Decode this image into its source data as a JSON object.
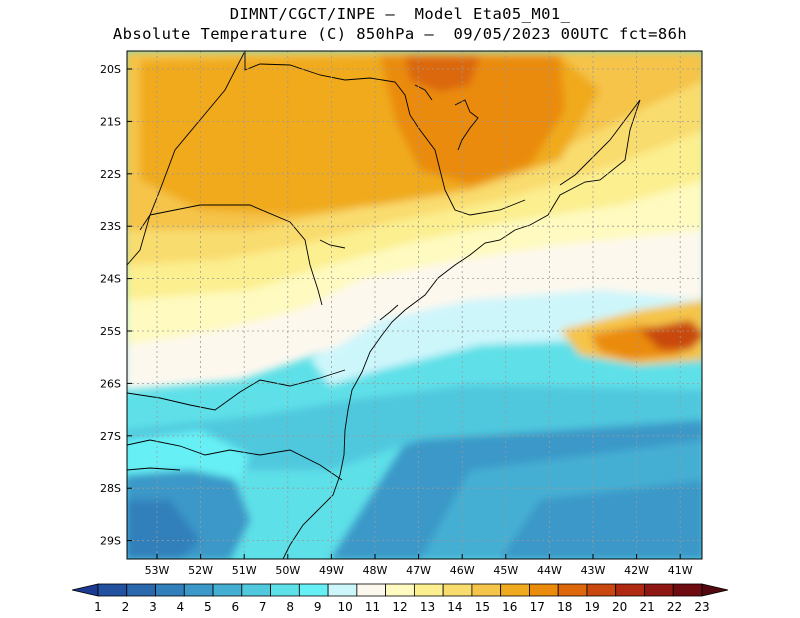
{
  "title_line1": "DIMNT/CGCT/INPE –  Model Eta05_M01_",
  "title_line2": "Absolute Temperature (C) 850hPa –  09/05/2023 00UTC fct=86h",
  "lat_labels": [
    "20S",
    "21S",
    "22S",
    "23S",
    "24S",
    "25S",
    "26S",
    "27S",
    "28S",
    "29S"
  ],
  "lon_labels": [
    "53W",
    "52W",
    "51W",
    "50W",
    "49W",
    "48W",
    "47W",
    "46W",
    "45W",
    "44W",
    "43W",
    "42W",
    "41W"
  ],
  "colorbar": {
    "labels": [
      "1",
      "2",
      "3",
      "4",
      "5",
      "6",
      "7",
      "8",
      "9",
      "10",
      "11",
      "12",
      "13",
      "14",
      "15",
      "16",
      "17",
      "18",
      "19",
      "20",
      "21",
      "22",
      "23"
    ],
    "colors": [
      "#1d3a91",
      "#2251a0",
      "#2a68ad",
      "#3180bb",
      "#3b98c8",
      "#45afd3",
      "#50c8de",
      "#5ee0e8",
      "#66f0f5",
      "#cdf6fb",
      "#fdf8ee",
      "#fefac0",
      "#fcef90",
      "#f9dc6e",
      "#f5c44a",
      "#f0aa1f",
      "#ea8b0c",
      "#dc680b",
      "#c9480f",
      "#b02a12",
      "#8f1713",
      "#6e0c12",
      "#520a10"
    ]
  }
}
